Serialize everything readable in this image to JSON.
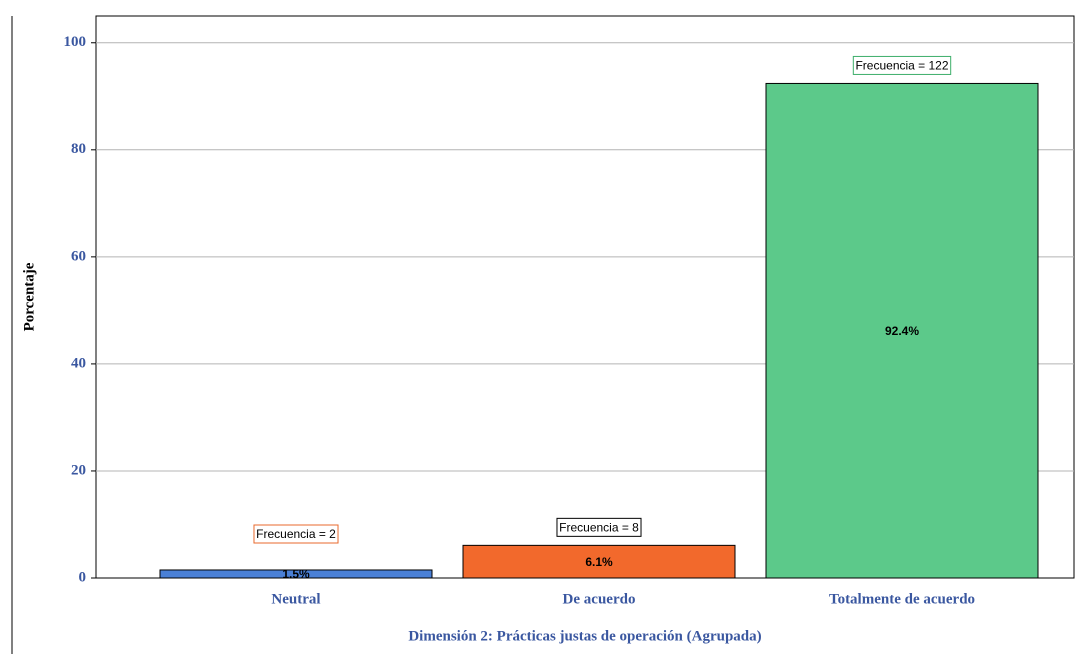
{
  "chart_data": {
    "type": "bar",
    "x_label": "Dimensión 2: Prácticas justas de operación (Agrupada)",
    "y_label": "Porcentaje",
    "categories": [
      "Neutral",
      "De acuerdo",
      "Totalmente de acuerdo"
    ],
    "values": [
      1.5,
      6.1,
      92.4
    ],
    "value_labels": [
      "1.5%",
      "6.1%",
      "92.4%"
    ],
    "annotations": [
      "Frecuencia = 2",
      "Frecuencia = 8",
      "Frecuencia = 122"
    ],
    "annotation_colors": [
      "#e8692c",
      "#000000",
      "#3cae6a"
    ],
    "colors": [
      "#4a80d6",
      "#f2692c",
      "#5cc98a"
    ],
    "ylim": [
      0,
      105
    ],
    "yticks": [
      0,
      20,
      40,
      60,
      80,
      100
    ],
    "grid": true
  }
}
